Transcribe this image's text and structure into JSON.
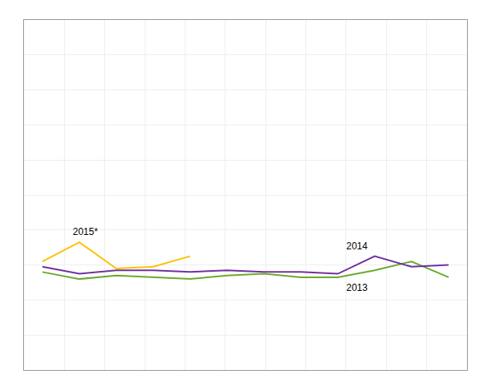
{
  "chart_data": {
    "type": "line",
    "x": [
      1,
      2,
      3,
      4,
      5,
      6,
      7,
      8,
      9,
      10,
      11,
      12
    ],
    "series": [
      {
        "name": "2013",
        "color": "#6aaa2e",
        "values": [
          56,
          52,
          54,
          53,
          52,
          54,
          55,
          53,
          53,
          57,
          62,
          53
        ]
      },
      {
        "name": "2014",
        "color": "#7030a0",
        "values": [
          59,
          55,
          57,
          57,
          56,
          57,
          56,
          56,
          55,
          65,
          59,
          60
        ]
      },
      {
        "name": "2015*",
        "color": "#ffc000",
        "values": [
          62,
          73,
          58,
          59,
          65,
          null,
          null,
          null,
          null,
          null,
          null,
          null
        ]
      }
    ],
    "annotations": [
      {
        "text": "2015*",
        "x": 1.7,
        "y": 73
      },
      {
        "text": "2014",
        "x": 9.1,
        "y": 65
      },
      {
        "text": "2013",
        "x": 9.1,
        "y": 53
      }
    ],
    "xlim": [
      0.5,
      12.5
    ],
    "xticks": [
      0.5,
      1.5909090909090908,
      2.6818181818181817,
      3.772727272727273,
      4.863636363636363,
      5.954545454545455,
      7.045454545454545,
      8.136363636363637,
      9.227272727272727,
      10.318181818181818,
      11.409090909090908,
      12.5
    ],
    "ylim": [
      0,
      200
    ],
    "yticks": [
      0,
      20,
      40,
      60,
      80,
      100,
      120,
      140,
      160,
      180,
      200
    ],
    "grid": true,
    "tick_labels": false
  }
}
